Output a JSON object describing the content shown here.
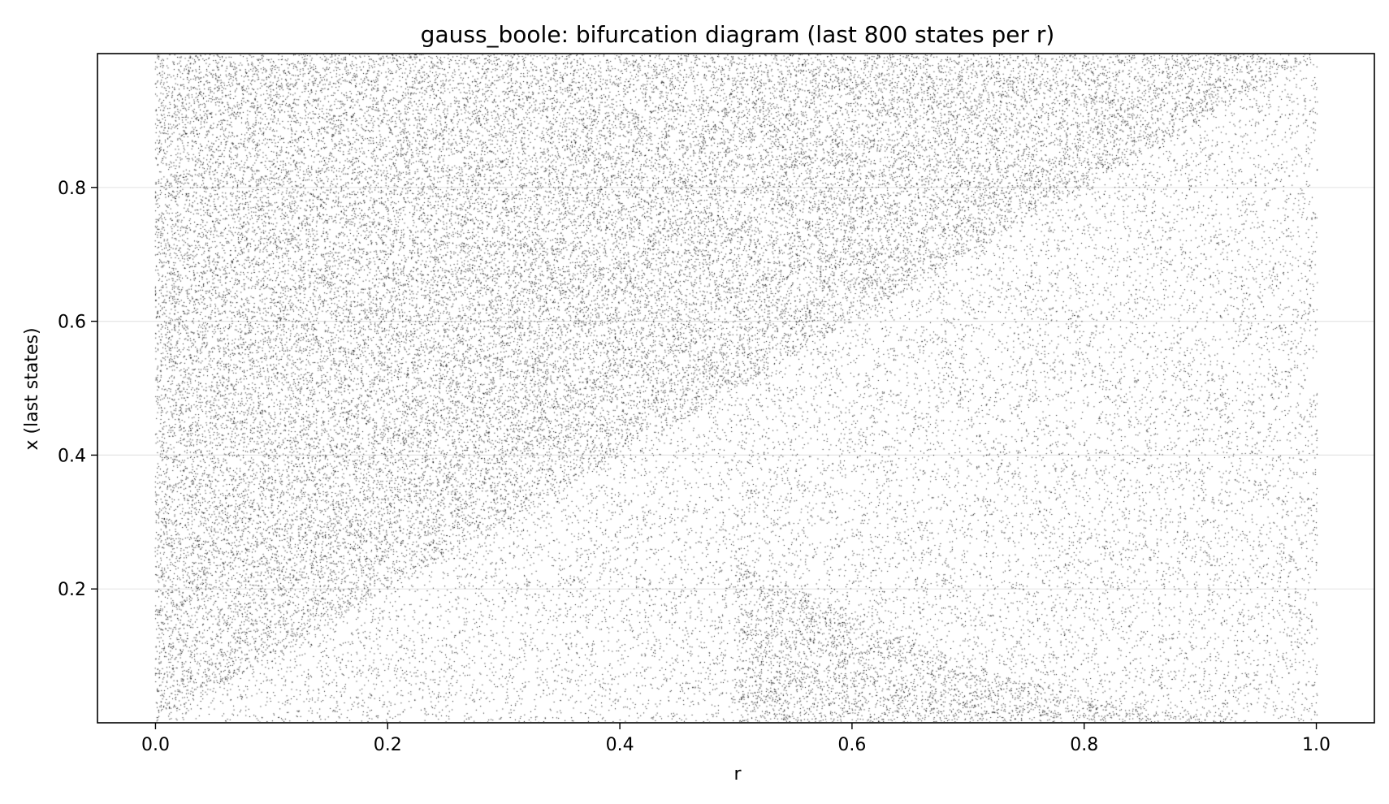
{
  "chart_data": {
    "type": "scatter",
    "title": "gauss_boole: bifurcation diagram (last 800 states per r)",
    "xlabel": "r",
    "ylabel": "x (last states)",
    "xlim": [
      -0.05,
      1.05
    ],
    "ylim": [
      0.0,
      1.0
    ],
    "x_ticks": [
      0.0,
      0.2,
      0.4,
      0.6,
      0.8,
      1.0
    ],
    "x_tick_labels": [
      "0.0",
      "0.2",
      "0.4",
      "0.6",
      "0.8",
      "1.0"
    ],
    "y_ticks": [
      0.2,
      0.4,
      0.6,
      0.8
    ],
    "y_tick_labels": [
      "0.2",
      "0.4",
      "0.6",
      "0.8"
    ],
    "grid": "horizontal",
    "marker_color": "#000000",
    "r_range": [
      0.0,
      1.0
    ],
    "states_per_r": 800,
    "regions": [
      {
        "description": "dense band above the diagonal x = r",
        "lower_boundary": "x = r",
        "density": "high"
      },
      {
        "description": "dense band below the curve x = (1 - r)^2 for r above 0.5",
        "upper_boundary": "x = (1 - r)^2",
        "density": "high"
      },
      {
        "description": "sparse region between the diagonal and the lower curve",
        "density": "low"
      }
    ]
  }
}
